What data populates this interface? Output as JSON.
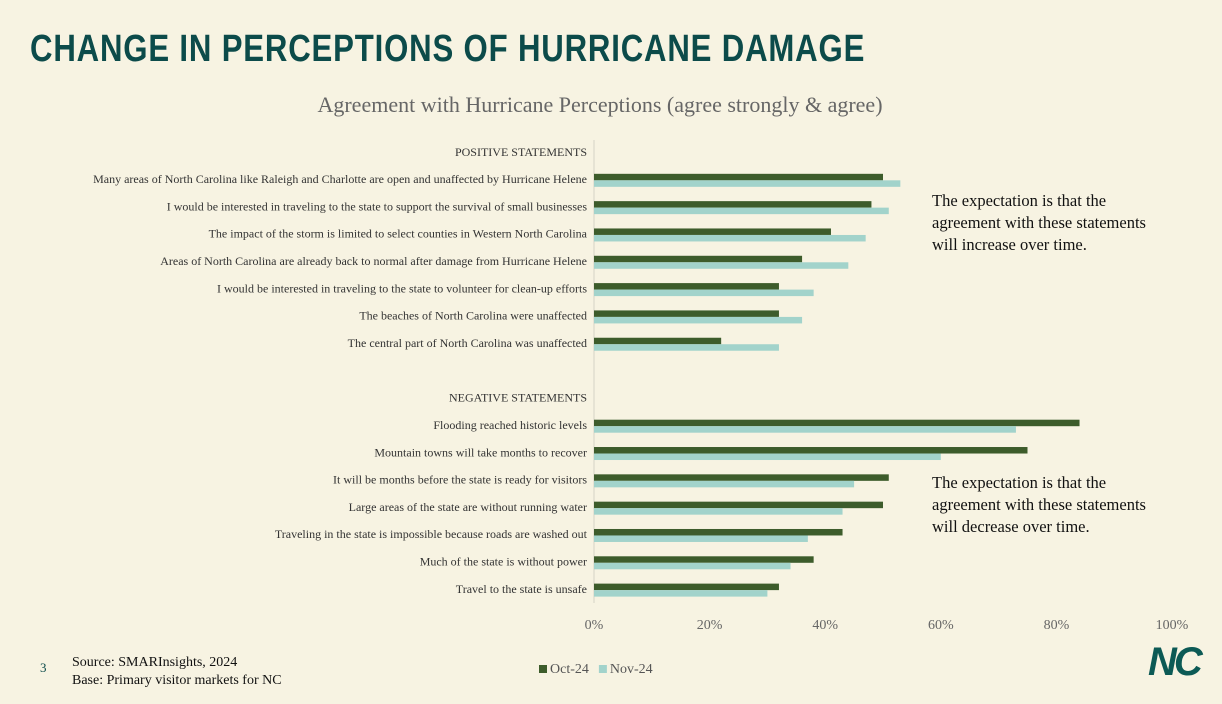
{
  "title": "CHANGE IN PERCEPTIONS OF HURRICANE DAMAGE",
  "page_number": "3",
  "source": "Source: SMARInsights, 2024",
  "base": "Base: Primary visitor markets for NC",
  "logo": "NC",
  "chart_data": {
    "type": "bar",
    "orientation": "horizontal",
    "title": "Agreement with Hurricane Perceptions (agree strongly & agree)",
    "categories": [
      "POSITIVE STATEMENTS",
      "Many areas of North Carolina like Raleigh and Charlotte are open and unaffected by Hurricane Helene",
      "I would be interested in traveling to the state to support the survival of small businesses",
      "The impact of the storm is limited to select counties in Western North Carolina",
      "Areas of North Carolina are already back to normal after damage from Hurricane Helene",
      "I would be interested in traveling to the state to volunteer for clean-up efforts",
      "The beaches of North Carolina were unaffected",
      "The central part of North Carolina was unaffected",
      null,
      "NEGATIVE STATEMENTS",
      "Flooding reached historic levels",
      "Mountain towns will take months to recover",
      "It will be months before the state is ready for visitors",
      "Large areas of the state are without running water",
      "Traveling in the state is impossible because roads are washed out",
      "Much of the state is without power",
      "Travel to the state is unsafe"
    ],
    "series": [
      {
        "name": "Oct-24",
        "color": "#3d5c2b",
        "values": [
          null,
          50,
          48,
          41,
          36,
          32,
          32,
          22,
          null,
          null,
          84,
          75,
          51,
          50,
          43,
          38,
          32
        ]
      },
      {
        "name": "Nov-24",
        "color": "#a2d3cb",
        "values": [
          null,
          53,
          51,
          47,
          44,
          38,
          36,
          32,
          null,
          null,
          73,
          60,
          45,
          43,
          37,
          34,
          30
        ]
      }
    ],
    "xlim": [
      0,
      100
    ],
    "xticks": [
      {
        "value": 0,
        "label": "0%"
      },
      {
        "value": 20,
        "label": "20%"
      },
      {
        "value": 40,
        "label": "40%"
      },
      {
        "value": 60,
        "label": "60%"
      },
      {
        "value": 80,
        "label": "80%"
      },
      {
        "value": 100,
        "label": "100%"
      }
    ],
    "legend": "bottom",
    "annotations": [
      "The expectation is that the agreement with these statements will increase over time.",
      "The expectation is that the agreement with these statements will decrease over time."
    ]
  }
}
